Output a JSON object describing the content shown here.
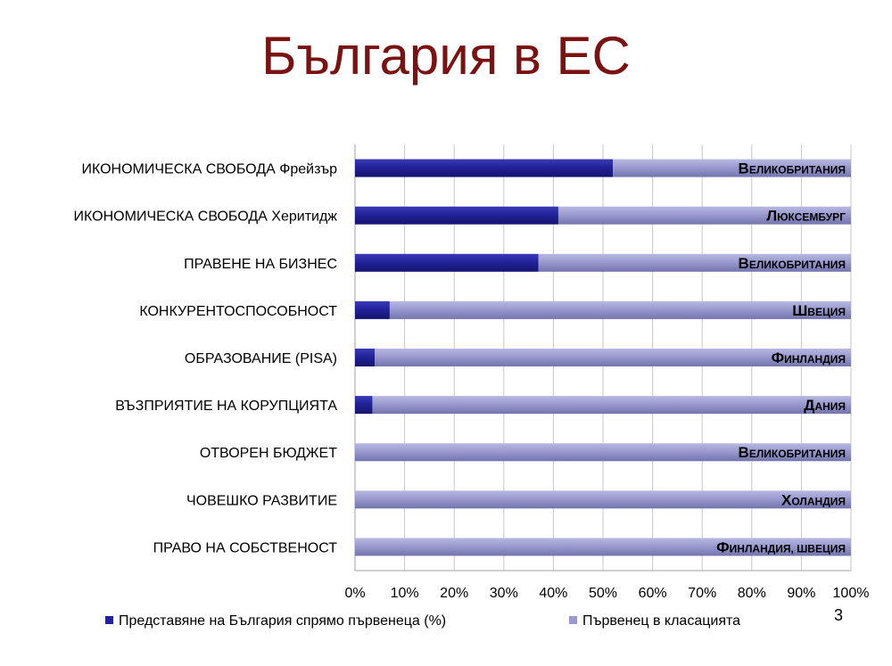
{
  "slide": {
    "title": "България в ЕС",
    "number": "3"
  },
  "colors": {
    "bulgaria": "#22229a",
    "leader": "#9a9ad0",
    "title": "#7b1212"
  },
  "chart_data": {
    "type": "bar",
    "orientation": "horizontal",
    "stacked": "percent",
    "categories": [
      "ИКОНОМИЧЕСКА СВОБОДА Фрейзър",
      "ИКОНОМИЧЕСКА СВОБОДА Херитидж",
      "ПРАВЕНЕ НА БИЗНЕС",
      "КОНКУРЕНТОСПОСОБНОСТ",
      "ОБРАЗОВАНИЕ (PISA)",
      "ВЪЗПРИЯТИЕ НА КОРУПЦИЯТА",
      "ОТВОРЕН БЮДЖЕТ",
      "ЧОВЕШКО РАЗВИТИЕ",
      "ПРАВО НА СОБСТВЕНОСТ"
    ],
    "series": [
      {
        "name": "Представяне на България спрямо първенеца (%)",
        "values": [
          52,
          41,
          37,
          7,
          4,
          3.5,
          0,
          0,
          0
        ]
      },
      {
        "name": "Първенец в класацията",
        "values": [
          48,
          59,
          63,
          93,
          96,
          96.5,
          100,
          100,
          100
        ]
      }
    ],
    "leaders": [
      "Великобритания",
      "Люксембург",
      "Великобритания",
      "Швеция",
      "Финландия",
      "Дания",
      "Великобритания",
      "Холандия",
      "Финландия, швеция"
    ],
    "x_ticks": [
      "0%",
      "10%",
      "20%",
      "30%",
      "40%",
      "50%",
      "60%",
      "70%",
      "80%",
      "90%",
      "100%"
    ],
    "xlim": [
      0,
      100
    ],
    "grid": true,
    "legend_position": "bottom"
  }
}
